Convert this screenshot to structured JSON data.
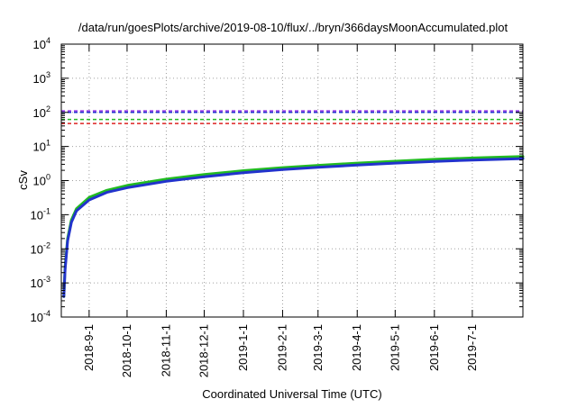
{
  "chart_data": {
    "type": "line",
    "title": "/data/run/goesPlots/archive/2019-08-10/flux/../bryn/366daysMoonAccumulated.plot",
    "xlabel": "Coordinated Universal Time (UTC)",
    "ylabel": "cSv",
    "x_ticks": [
      "2018-9-1",
      "2018-10-1",
      "2018-11-1",
      "2018-12-1",
      "2019-1-1",
      "2019-2-1",
      "2019-3-1",
      "2019-4-1",
      "2019-5-1",
      "2019-6-1",
      "2019-7-1"
    ],
    "xlim": [
      "2018-08-10",
      "2019-08-10"
    ],
    "y_scale": "log",
    "ylim": [
      0.0001,
      10000
    ],
    "y_ticks": [
      {
        "base": "10",
        "exp": "-4"
      },
      {
        "base": "10",
        "exp": "-3"
      },
      {
        "base": "10",
        "exp": "-2"
      },
      {
        "base": "10",
        "exp": "-1"
      },
      {
        "base": "10",
        "exp": "0"
      },
      {
        "base": "10",
        "exp": "1"
      },
      {
        "base": "10",
        "exp": "2"
      },
      {
        "base": "10",
        "exp": "3"
      },
      {
        "base": "10",
        "exp": "4"
      }
    ],
    "grid": true,
    "reference_lines": [
      {
        "value": 110,
        "color": "#8a2be2"
      },
      {
        "value": 100,
        "color": "#2233cc"
      },
      {
        "value": 62,
        "color": "#22bb22"
      },
      {
        "value": 47,
        "color": "#dd2222"
      }
    ],
    "series": [
      {
        "color": "#22bb22",
        "x": [
          "2018-08-12",
          "2018-08-13",
          "2018-08-15",
          "2018-08-18",
          "2018-08-22",
          "2018-09-01",
          "2018-09-15",
          "2018-10-01",
          "2018-11-01",
          "2018-12-01",
          "2019-01-01",
          "2019-02-01",
          "2019-03-01",
          "2019-04-01",
          "2019-05-01",
          "2019-06-01",
          "2019-07-01",
          "2019-08-10"
        ],
        "y": [
          0.0004,
          0.003,
          0.02,
          0.07,
          0.15,
          0.32,
          0.52,
          0.72,
          1.1,
          1.5,
          1.95,
          2.4,
          2.8,
          3.25,
          3.7,
          4.2,
          4.6,
          5.1
        ]
      },
      {
        "color": "#2233cc",
        "x": [
          "2018-08-12",
          "2018-08-13",
          "2018-08-15",
          "2018-08-18",
          "2018-08-22",
          "2018-09-01",
          "2018-09-15",
          "2018-10-01",
          "2018-11-01",
          "2018-12-01",
          "2019-01-01",
          "2019-02-01",
          "2019-03-01",
          "2019-04-01",
          "2019-05-01",
          "2019-06-01",
          "2019-07-01",
          "2019-08-10"
        ],
        "y": [
          0.0004,
          0.0025,
          0.017,
          0.06,
          0.13,
          0.27,
          0.45,
          0.62,
          0.95,
          1.3,
          1.7,
          2.1,
          2.45,
          2.85,
          3.25,
          3.65,
          4.0,
          4.4
        ]
      }
    ]
  },
  "colors": {
    "axis": "#000000",
    "grid": "#a0a0a0",
    "background": "#ffffff"
  }
}
